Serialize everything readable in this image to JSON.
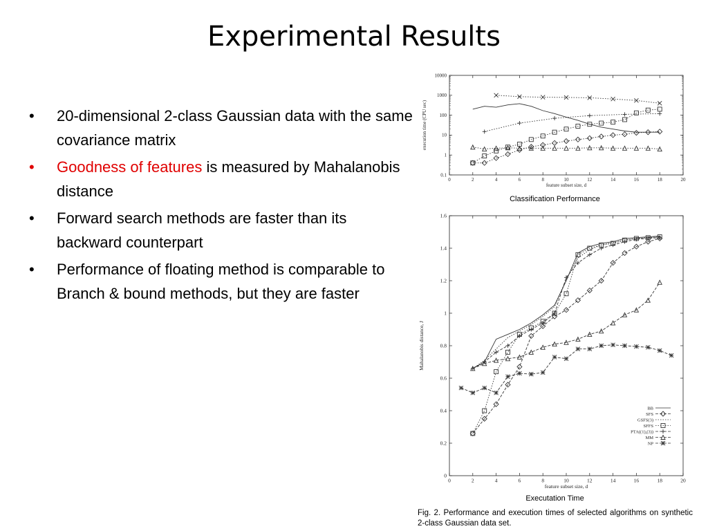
{
  "slide": {
    "title": "Experimental Results",
    "bullets": [
      {
        "red": "",
        "text": "20-dimensional 2-class Gaussian data with the same covariance matrix"
      },
      {
        "red": "Goodness of features",
        "text": " is measured by Mahalanobis distance"
      },
      {
        "red": "",
        "text": "Forward search methods are faster than its backward counterpart"
      },
      {
        "red": "",
        "text": "Performance of floating method is comparable to Branch & bound methods, but they are faster"
      }
    ],
    "bullet_symbol": "•",
    "top_chart_caption": "Classification Performance",
    "bottom_chart_caption": "Executation Time",
    "figure_caption": "Fig. 2. Performance and execution times of selected algorithms on synthetic 2-class Gaussian data set."
  },
  "chart_data": [
    {
      "type": "line",
      "ylabel": "execution time (CPU sec)",
      "xlabel": "feature subset size, d",
      "log_y": true,
      "xlim": [
        0,
        20
      ],
      "ylim": [
        0.1,
        10000
      ],
      "xticks": [
        "0",
        "2",
        "4",
        "6",
        "8",
        "10",
        "12",
        "14",
        "16",
        "18",
        "20"
      ],
      "yticks": [
        "0.1",
        "1",
        "10",
        "100",
        "1000",
        "10000"
      ],
      "series": [
        {
          "style": "solid",
          "marker": "",
          "x": [
            2,
            3,
            4,
            5,
            6,
            7,
            8,
            9,
            10,
            11,
            12,
            13,
            14,
            15,
            16,
            17,
            18
          ],
          "y": [
            200,
            280,
            250,
            330,
            380,
            280,
            170,
            120,
            80,
            55,
            35,
            25,
            20,
            16,
            14,
            14,
            14
          ]
        },
        {
          "style": "dotted",
          "marker": "x",
          "x": [
            4,
            6,
            8,
            10,
            12,
            14,
            16,
            18
          ],
          "y": [
            1000,
            850,
            800,
            780,
            750,
            650,
            550,
            400
          ]
        },
        {
          "style": "dotted",
          "marker": "+",
          "x": [
            3,
            6,
            9,
            12,
            15,
            18
          ],
          "y": [
            15,
            40,
            70,
            95,
            110,
            120
          ]
        },
        {
          "style": "dotted",
          "marker": "square",
          "x": [
            2,
            3,
            4,
            5,
            6,
            7,
            8,
            9,
            10,
            11,
            12,
            13,
            14,
            15,
            16,
            17,
            18
          ],
          "y": [
            0.4,
            0.9,
            1.6,
            2.5,
            3.5,
            6,
            9,
            14,
            20,
            28,
            35,
            40,
            45,
            60,
            130,
            180,
            200
          ]
        },
        {
          "style": "dotted",
          "marker": "diamond",
          "x": [
            2,
            3,
            4,
            5,
            6,
            7,
            8,
            9,
            10,
            11,
            12,
            13,
            14,
            15,
            16,
            17,
            18
          ],
          "y": [
            0.4,
            0.4,
            0.7,
            1.1,
            1.8,
            2.6,
            3.2,
            4,
            5,
            6,
            7,
            8.5,
            10,
            11,
            13,
            14,
            15
          ]
        },
        {
          "style": "dotted",
          "marker": "triangle",
          "x": [
            2,
            3,
            4,
            5,
            6,
            7,
            8,
            9,
            10,
            11,
            12,
            13,
            14,
            15,
            16,
            17,
            18
          ],
          "y": [
            2.5,
            2,
            2.2,
            2.3,
            2.2,
            2.2,
            2.2,
            2.2,
            2.2,
            2.2,
            2.3,
            2.3,
            2.2,
            2.2,
            2.2,
            2.2,
            2
          ]
        }
      ]
    },
    {
      "type": "line",
      "ylabel": "Mahalanobis distance, J",
      "xlabel": "feature subset size, d",
      "xlim": [
        0,
        20
      ],
      "ylim": [
        0,
        1.6
      ],
      "xticks": [
        "0",
        "2",
        "4",
        "6",
        "8",
        "10",
        "12",
        "14",
        "16",
        "18",
        "20"
      ],
      "yticks": [
        "0",
        "0.2",
        "0.4",
        "0.6",
        "0.8",
        "1",
        "1.2",
        "1.4",
        "1.6"
      ],
      "legend": [
        "BB",
        "SFS",
        "GSFS(3)",
        "SFFS",
        "PTA((1),(3))",
        "MM",
        "NP"
      ],
      "series": [
        {
          "name": "BB",
          "style": "solid",
          "marker": "",
          "x": [
            2,
            3,
            4,
            5,
            6,
            7,
            8,
            9,
            10,
            11,
            12,
            13,
            14,
            15,
            16,
            17,
            18
          ],
          "y": [
            0.66,
            0.7,
            0.84,
            0.87,
            0.9,
            0.94,
            0.99,
            1.05,
            1.2,
            1.37,
            1.41,
            1.43,
            1.44,
            1.46,
            1.465,
            1.47,
            1.475
          ]
        },
        {
          "name": "SFS",
          "style": "dashed",
          "marker": "diamond",
          "x": [
            2,
            3,
            4,
            5,
            6,
            7,
            8,
            9,
            10,
            11,
            12,
            13,
            14,
            15,
            16,
            17,
            18
          ],
          "y": [
            0.26,
            0.35,
            0.44,
            0.56,
            0.67,
            0.86,
            0.92,
            0.98,
            1.02,
            1.08,
            1.14,
            1.2,
            1.31,
            1.37,
            1.41,
            1.44,
            1.46
          ]
        },
        {
          "name": "GSFS(3)",
          "style": "dotted",
          "marker": "",
          "x": [
            2,
            3,
            4,
            5,
            6,
            7,
            8,
            9,
            10,
            11,
            12,
            13,
            14,
            15,
            16,
            17,
            18
          ],
          "y": [
            0.66,
            0.71,
            0.78,
            0.85,
            0.89,
            0.93,
            0.98,
            1.04,
            1.21,
            1.34,
            1.39,
            1.42,
            1.435,
            1.45,
            1.46,
            1.465,
            1.47
          ]
        },
        {
          "name": "SFFS",
          "style": "dotted",
          "marker": "square",
          "x": [
            2,
            3,
            4,
            5,
            6,
            7,
            8,
            9,
            10,
            11,
            12,
            13,
            14,
            15,
            16,
            17,
            18
          ],
          "y": [
            0.26,
            0.4,
            0.64,
            0.76,
            0.87,
            0.91,
            0.95,
            1.0,
            1.12,
            1.36,
            1.4,
            1.42,
            1.43,
            1.45,
            1.46,
            1.465,
            1.47
          ]
        },
        {
          "name": "PTA((1),(3))",
          "style": "dashed",
          "marker": "+",
          "x": [
            2,
            3,
            4,
            5,
            6,
            7,
            8,
            9,
            10,
            11,
            12,
            13,
            14,
            15,
            16,
            17,
            18
          ],
          "y": [
            0.66,
            0.7,
            0.76,
            0.8,
            0.86,
            0.9,
            0.94,
            1.0,
            1.22,
            1.31,
            1.36,
            1.4,
            1.42,
            1.44,
            1.455,
            1.46,
            1.465
          ]
        },
        {
          "name": "MM",
          "style": "dashed",
          "marker": "triangle",
          "x": [
            2,
            3,
            4,
            5,
            6,
            7,
            8,
            9,
            10,
            11,
            12,
            13,
            14,
            15,
            16,
            17,
            18
          ],
          "y": [
            0.66,
            0.69,
            0.71,
            0.72,
            0.73,
            0.76,
            0.79,
            0.81,
            0.82,
            0.84,
            0.87,
            0.89,
            0.94,
            0.99,
            1.02,
            1.08,
            1.19
          ]
        },
        {
          "name": "NP",
          "style": "dashed",
          "marker": "asterisk",
          "x": [
            1,
            2,
            3,
            4,
            5,
            6,
            7,
            8,
            9,
            10,
            11,
            12,
            13,
            14,
            15,
            16,
            17,
            18,
            19
          ],
          "y": [
            0.54,
            0.51,
            0.54,
            0.51,
            0.61,
            0.63,
            0.625,
            0.635,
            0.73,
            0.72,
            0.78,
            0.78,
            0.8,
            0.805,
            0.8,
            0.795,
            0.79,
            0.77,
            0.74
          ]
        }
      ]
    }
  ]
}
